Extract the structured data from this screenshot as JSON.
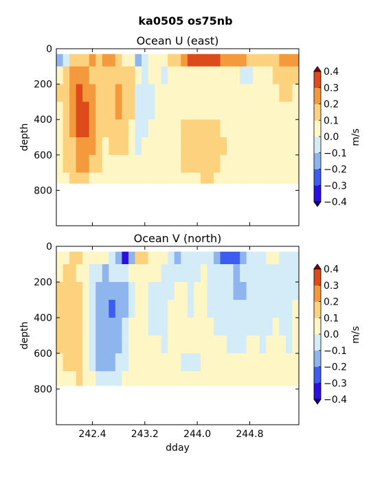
{
  "figure": {
    "suptitle": "ka0505 os75nb"
  },
  "chart_data": [
    {
      "type": "heatmap",
      "title": "Ocean U (east)",
      "xlabel": "",
      "ylabel": "depth",
      "xlim": [
        241.85,
        245.55
      ],
      "ylim": [
        1000,
        0
      ],
      "y_inverted": true,
      "xticks": [
        242.4,
        243.2,
        244.0,
        244.8
      ],
      "xtick_labels": [
        "",
        "",
        "",
        ""
      ],
      "yticks": [
        0,
        200,
        400,
        600,
        800
      ],
      "ytick_labels": [
        "0",
        "200",
        "400",
        "600",
        "800"
      ],
      "data_depth_range": [
        30,
        760
      ],
      "dday": [
        241.9,
        242.0,
        242.1,
        242.2,
        242.3,
        242.4,
        242.5,
        242.6,
        242.7,
        242.8,
        242.9,
        243.0,
        243.1,
        243.2,
        243.3,
        243.4,
        243.5,
        243.6,
        243.7,
        243.8,
        243.9,
        244.0,
        244.1,
        244.2,
        244.3,
        244.4,
        244.5,
        244.6,
        244.7,
        244.8,
        244.9,
        245.0,
        245.1,
        245.2,
        245.3,
        245.4,
        245.5
      ],
      "depth": [
        50,
        150,
        250,
        350,
        450,
        550,
        650,
        750
      ],
      "values": [
        [
          -0.2,
          0.05,
          0.1,
          0.05,
          0.05,
          0.05,
          0.05,
          0.0
        ],
        [
          -0.1,
          0.1,
          0.15,
          0.15,
          0.1,
          0.1,
          0.1,
          0.05
        ],
        [
          0.15,
          0.2,
          0.25,
          0.25,
          0.2,
          0.15,
          0.15,
          0.1
        ],
        [
          0.15,
          0.25,
          0.3,
          0.35,
          0.3,
          0.25,
          0.2,
          0.1
        ],
        [
          0.15,
          0.2,
          0.25,
          0.3,
          0.3,
          0.25,
          0.2,
          0.1
        ],
        [
          0.2,
          0.15,
          0.2,
          0.2,
          0.2,
          0.2,
          0.15,
          0.05
        ],
        [
          0.15,
          0.15,
          0.15,
          0.15,
          0.15,
          0.15,
          0.1,
          0.05
        ],
        [
          0.2,
          0.1,
          0.1,
          0.1,
          0.1,
          0.05,
          0.05,
          0.05
        ],
        [
          0.25,
          0.15,
          0.15,
          0.15,
          0.15,
          0.1,
          0.05,
          0.0
        ],
        [
          0.1,
          0.15,
          0.2,
          0.2,
          0.15,
          0.1,
          0.05,
          0.0
        ],
        [
          0.05,
          0.1,
          0.15,
          0.15,
          0.15,
          0.1,
          0.05,
          0.0
        ],
        [
          0.05,
          0.1,
          0.1,
          0.1,
          0.05,
          0.05,
          0.0,
          0.0
        ],
        [
          -0.15,
          0.0,
          -0.05,
          -0.05,
          -0.05,
          -0.05,
          0.0,
          0.0
        ],
        [
          -0.1,
          -0.05,
          -0.05,
          -0.05,
          -0.05,
          0.0,
          0.0,
          0.0
        ],
        [
          0.05,
          0.0,
          -0.05,
          -0.05,
          0.0,
          0.0,
          0.0,
          0.0
        ],
        [
          0.05,
          0.0,
          0.0,
          0.0,
          0.05,
          0.0,
          0.0,
          0.0
        ],
        [
          0.05,
          -0.05,
          0.0,
          0.0,
          0.0,
          0.0,
          0.0,
          0.0
        ],
        [
          0.1,
          0.0,
          0.0,
          0.0,
          0.0,
          0.0,
          0.05,
          0.0
        ],
        [
          0.15,
          0.05,
          0.05,
          0.05,
          0.05,
          0.05,
          0.05,
          0.05
        ],
        [
          0.25,
          0.05,
          0.05,
          0.05,
          0.1,
          0.1,
          0.1,
          0.05
        ],
        [
          0.3,
          0.05,
          0.05,
          0.05,
          0.1,
          0.15,
          0.15,
          0.05
        ],
        [
          0.35,
          0.05,
          0.05,
          0.05,
          0.1,
          0.15,
          0.15,
          0.05
        ],
        [
          0.35,
          0.0,
          0.05,
          0.05,
          0.1,
          0.15,
          0.15,
          0.1
        ],
        [
          0.3,
          0.0,
          0.0,
          0.05,
          0.1,
          0.15,
          0.15,
          0.1
        ],
        [
          0.3,
          0.0,
          0.05,
          0.05,
          0.1,
          0.15,
          0.1,
          0.05
        ],
        [
          0.25,
          0.0,
          0.05,
          0.05,
          0.05,
          0.1,
          0.05,
          0.0
        ],
        [
          0.25,
          0.0,
          0.0,
          0.05,
          0.05,
          0.05,
          0.05,
          0.0
        ],
        [
          0.2,
          0.0,
          0.0,
          0.05,
          0.05,
          0.05,
          0.05,
          0.05
        ],
        [
          0.2,
          -0.05,
          0.0,
          0.0,
          0.05,
          0.05,
          0.05,
          0.05
        ],
        [
          0.15,
          -0.05,
          0.0,
          0.0,
          0.05,
          0.05,
          0.05,
          0.05
        ],
        [
          0.15,
          0.0,
          0.05,
          0.05,
          0.05,
          0.05,
          0.05,
          0.05
        ],
        [
          0.15,
          0.05,
          0.05,
          0.05,
          0.05,
          0.05,
          0.05,
          0.0
        ],
        [
          0.15,
          0.05,
          0.0,
          0.05,
          0.05,
          0.05,
          0.0,
          0.0
        ],
        [
          0.15,
          0.1,
          0.05,
          0.05,
          0.05,
          0.0,
          0.0,
          0.0
        ],
        [
          0.2,
          0.15,
          0.1,
          0.05,
          0.05,
          0.0,
          0.0,
          0.0
        ],
        [
          0.2,
          0.1,
          0.1,
          0.05,
          0.0,
          0.0,
          0.0,
          0.0
        ],
        [
          0.2,
          0.1,
          0.05,
          0.05,
          0.0,
          0.0,
          0.0,
          0.0
        ]
      ]
    },
    {
      "type": "heatmap",
      "title": "Ocean V (north)",
      "xlabel": "dday",
      "ylabel": "depth",
      "xlim": [
        241.85,
        245.55
      ],
      "ylim": [
        1000,
        0
      ],
      "y_inverted": true,
      "xticks": [
        242.4,
        243.2,
        244.0,
        244.8
      ],
      "xtick_labels": [
        "242.4",
        "243.2",
        "244.0",
        "244.8"
      ],
      "yticks": [
        0,
        200,
        400,
        600,
        800
      ],
      "ytick_labels": [
        "0",
        "200",
        "400",
        "600",
        "800"
      ],
      "data_depth_range": [
        30,
        780
      ],
      "dday": [
        241.9,
        242.0,
        242.1,
        242.2,
        242.3,
        242.4,
        242.5,
        242.6,
        242.7,
        242.8,
        242.9,
        243.0,
        243.1,
        243.2,
        243.3,
        243.4,
        243.5,
        243.6,
        243.7,
        243.8,
        243.9,
        244.0,
        244.1,
        244.2,
        244.3,
        244.4,
        244.5,
        244.6,
        244.7,
        244.8,
        244.9,
        245.0,
        245.1,
        245.2,
        245.3,
        245.4,
        245.5
      ],
      "depth": [
        50,
        150,
        250,
        350,
        450,
        550,
        650,
        750
      ],
      "values": [
        [
          0.05,
          0.05,
          0.1,
          0.1,
          0.1,
          0.1,
          0.05,
          0.0
        ],
        [
          0.05,
          0.1,
          0.1,
          0.15,
          0.15,
          0.1,
          0.1,
          0.05
        ],
        [
          0.1,
          0.1,
          0.15,
          0.15,
          0.15,
          0.15,
          0.1,
          0.05
        ],
        [
          0.1,
          0.05,
          0.1,
          0.1,
          0.15,
          0.15,
          0.1,
          0.1
        ],
        [
          0.05,
          0.0,
          0.05,
          0.05,
          0.05,
          0.05,
          0.05,
          0.05
        ],
        [
          0.0,
          -0.05,
          -0.05,
          -0.05,
          -0.05,
          -0.05,
          -0.05,
          0.0
        ],
        [
          0.0,
          -0.1,
          -0.15,
          -0.15,
          -0.15,
          -0.15,
          -0.15,
          -0.1
        ],
        [
          0.0,
          -0.15,
          -0.2,
          -0.15,
          -0.15,
          -0.15,
          -0.15,
          -0.1
        ],
        [
          -0.05,
          -0.1,
          -0.2,
          -0.25,
          -0.2,
          -0.15,
          -0.15,
          -0.1
        ],
        [
          -0.15,
          -0.1,
          -0.2,
          -0.2,
          -0.2,
          -0.15,
          -0.1,
          -0.05
        ],
        [
          -0.35,
          -0.05,
          -0.15,
          -0.15,
          -0.1,
          -0.1,
          -0.05,
          0.0
        ],
        [
          -0.2,
          0.0,
          -0.05,
          -0.05,
          0.0,
          0.0,
          0.0,
          0.0
        ],
        [
          0.1,
          0.0,
          0.0,
          0.0,
          0.0,
          0.0,
          0.05,
          0.0
        ],
        [
          0.1,
          0.0,
          0.0,
          0.0,
          0.0,
          0.0,
          0.0,
          0.0
        ],
        [
          0.05,
          0.0,
          -0.05,
          -0.05,
          -0.05,
          0.0,
          0.0,
          0.0
        ],
        [
          0.0,
          0.0,
          -0.05,
          -0.05,
          -0.05,
          0.0,
          0.0,
          0.0
        ],
        [
          0.0,
          -0.05,
          -0.05,
          -0.05,
          -0.05,
          -0.05,
          0.0,
          0.0
        ],
        [
          -0.05,
          -0.05,
          -0.05,
          0.0,
          0.0,
          0.0,
          0.0,
          0.0
        ],
        [
          -0.15,
          -0.05,
          0.0,
          0.0,
          0.0,
          0.0,
          0.0,
          0.0
        ],
        [
          -0.1,
          -0.05,
          0.0,
          0.0,
          0.0,
          0.0,
          -0.05,
          0.0
        ],
        [
          -0.05,
          -0.05,
          -0.05,
          -0.05,
          0.0,
          0.0,
          -0.05,
          0.0
        ],
        [
          -0.1,
          -0.05,
          0.0,
          0.0,
          0.0,
          0.0,
          -0.05,
          0.0
        ],
        [
          -0.05,
          0.0,
          0.0,
          0.0,
          0.0,
          0.0,
          0.0,
          0.0
        ],
        [
          -0.1,
          -0.05,
          -0.05,
          -0.05,
          0.0,
          0.0,
          0.0,
          0.0
        ],
        [
          -0.2,
          -0.1,
          -0.05,
          -0.05,
          -0.05,
          0.0,
          0.0,
          0.0
        ],
        [
          -0.25,
          -0.1,
          -0.1,
          -0.05,
          -0.05,
          0.0,
          0.0,
          0.0
        ],
        [
          -0.3,
          -0.1,
          -0.1,
          -0.05,
          -0.05,
          -0.05,
          0.0,
          0.0
        ],
        [
          -0.3,
          -0.15,
          -0.15,
          -0.1,
          -0.05,
          -0.05,
          0.0,
          0.0
        ],
        [
          -0.2,
          -0.1,
          -0.15,
          -0.1,
          -0.05,
          -0.05,
          0.0,
          0.0
        ],
        [
          -0.1,
          -0.05,
          -0.1,
          -0.05,
          -0.05,
          0.0,
          0.0,
          0.0
        ],
        [
          -0.05,
          -0.05,
          -0.05,
          -0.05,
          -0.05,
          0.0,
          0.0,
          0.0
        ],
        [
          -0.05,
          -0.05,
          -0.05,
          -0.05,
          -0.05,
          -0.05,
          0.0,
          0.0
        ],
        [
          0.0,
          -0.05,
          -0.05,
          -0.05,
          -0.05,
          0.0,
          0.0,
          0.0
        ],
        [
          0.0,
          -0.05,
          -0.05,
          -0.05,
          0.0,
          0.0,
          0.0,
          0.0
        ],
        [
          -0.05,
          -0.05,
          -0.05,
          -0.05,
          -0.05,
          0.0,
          0.0,
          0.0
        ],
        [
          -0.05,
          -0.05,
          -0.05,
          -0.05,
          -0.05,
          -0.05,
          0.0,
          0.0
        ],
        [
          -0.05,
          -0.05,
          -0.05,
          0.0,
          0.0,
          0.0,
          0.0,
          0.0
        ]
      ]
    }
  ],
  "colorbar": {
    "label": "m/s",
    "levels": [
      -0.4,
      -0.3,
      -0.2,
      -0.1,
      0.0,
      0.1,
      0.2,
      0.3,
      0.4
    ],
    "tick_labels": [
      "−0.4",
      "−0.3",
      "−0.2",
      "−0.1",
      "0.0",
      "0.1",
      "0.2",
      "0.3",
      "0.4"
    ],
    "colors": [
      "#2a0fe0",
      "#3d5cf0",
      "#8fb5ee",
      "#d4ecf8",
      "#fff6c6",
      "#fdd27e",
      "#f59a3c",
      "#dd4a1c"
    ],
    "under_color": "#1a0080",
    "over_color": "#8b0000"
  }
}
